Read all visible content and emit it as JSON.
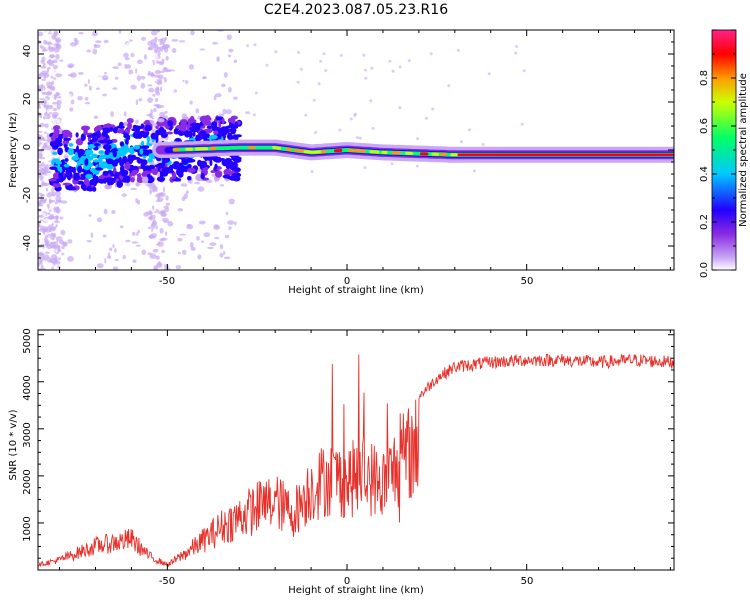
{
  "title": "C2E4.2023.087.05.23.R16",
  "chart_data": [
    {
      "type": "heatmap",
      "xlabel": "Height of straight line (km)",
      "ylabel": "Frequency (Hz)",
      "xlim": [
        -86,
        91
      ],
      "ylim": [
        -50,
        50
      ],
      "xticks": [
        "-50",
        "0",
        "50"
      ],
      "yticks": [
        "40",
        "20",
        "0",
        "-20",
        "-40"
      ],
      "colorbar": {
        "label": "Normalized spectral amplitude",
        "range": [
          0.0,
          1.0
        ],
        "ticks": [
          "0.0",
          "0.2",
          "0.4",
          "0.6",
          "0.8"
        ],
        "colormap": [
          "#ffffff",
          "#c9a8f5",
          "#8a2be2",
          "#2200ff",
          "#00c8ff",
          "#00ff66",
          "#ccff00",
          "#ff9900",
          "#ff0000",
          "#ff2288"
        ]
      },
      "ridge": [
        {
          "x": -86,
          "y": -3
        },
        {
          "x": -70,
          "y": -4
        },
        {
          "x": -60,
          "y": 0
        },
        {
          "x": -50,
          "y": 0
        },
        {
          "x": -40,
          "y": 0.5
        },
        {
          "x": -30,
          "y": 1
        },
        {
          "x": -20,
          "y": 1
        },
        {
          "x": -10,
          "y": -1
        },
        {
          "x": 0,
          "y": 0
        },
        {
          "x": 10,
          "y": -1
        },
        {
          "x": 30,
          "y": -2
        },
        {
          "x": 60,
          "y": -2
        },
        {
          "x": 91,
          "y": -2
        }
      ],
      "grid": false
    },
    {
      "type": "line",
      "xlabel": "Height of straight line (km)",
      "ylabel": "SNR (10 * v/v)",
      "xlim": [
        -86,
        91
      ],
      "ylim": [
        0,
        5100
      ],
      "xticks": [
        "-50",
        "0",
        "50"
      ],
      "yticks": [
        "5000",
        "4000",
        "3000",
        "2000",
        "1000"
      ],
      "color": "#e8302a",
      "envelope": [
        {
          "x": -86,
          "y": 150
        },
        {
          "x": -80,
          "y": 300
        },
        {
          "x": -70,
          "y": 700
        },
        {
          "x": -60,
          "y": 900
        },
        {
          "x": -55,
          "y": 400
        },
        {
          "x": -50,
          "y": 150
        },
        {
          "x": -45,
          "y": 500
        },
        {
          "x": -40,
          "y": 900
        },
        {
          "x": -35,
          "y": 1300
        },
        {
          "x": -30,
          "y": 1600
        },
        {
          "x": -25,
          "y": 1900
        },
        {
          "x": -20,
          "y": 2100
        },
        {
          "x": -15,
          "y": 1700
        },
        {
          "x": -10,
          "y": 2500
        },
        {
          "x": -5,
          "y": 2800
        },
        {
          "x": 0,
          "y": 2700
        },
        {
          "x": 5,
          "y": 2900
        },
        {
          "x": 10,
          "y": 2600
        },
        {
          "x": 15,
          "y": 3300
        },
        {
          "x": 20,
          "y": 3800
        },
        {
          "x": 25,
          "y": 4200
        },
        {
          "x": 30,
          "y": 4450
        },
        {
          "x": 40,
          "y": 4550
        },
        {
          "x": 50,
          "y": 4600
        },
        {
          "x": 60,
          "y": 4600
        },
        {
          "x": 70,
          "y": 4550
        },
        {
          "x": 80,
          "y": 4600
        },
        {
          "x": 91,
          "y": 4550
        }
      ],
      "grid": false
    }
  ]
}
